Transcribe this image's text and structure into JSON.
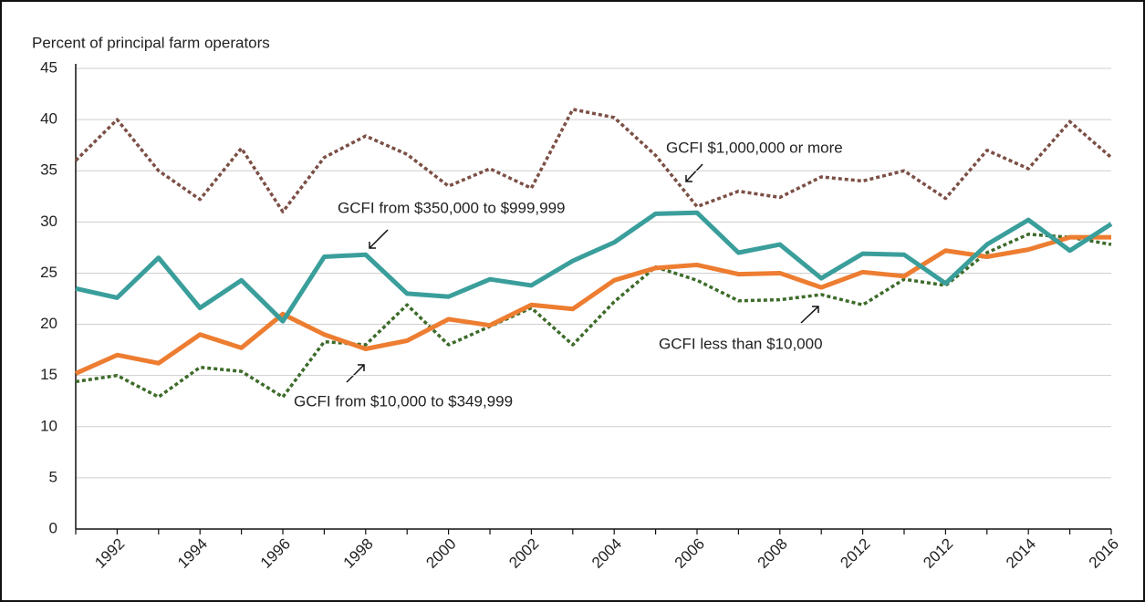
{
  "chart_data": {
    "type": "line",
    "y_axis_label": "Percent of principal farm operators",
    "categories": [
      null,
      "1992",
      null,
      "1994",
      null,
      "1996",
      null,
      "1998",
      null,
      "2000",
      null,
      "2002",
      null,
      "2004",
      null,
      "2006",
      null,
      "2008",
      null,
      "2012",
      null,
      "2012",
      null,
      "2014",
      null,
      "2016"
    ],
    "series": [
      {
        "name": "GCFI $1,000,000 or more",
        "color": "#7b4f45",
        "style": "dotted",
        "values": [
          36,
          40,
          35,
          32.2,
          37.2,
          31,
          36.3,
          38.4,
          36.6,
          33.5,
          35.2,
          33.3,
          41,
          40.2,
          36.5,
          31.5,
          33,
          32.4,
          34.4,
          34,
          35,
          32.3,
          37,
          35.2,
          39.8,
          36.3
        ]
      },
      {
        "name": "GCFI from $350,000 to $999,999",
        "color": "#3a9e9b",
        "style": "solid",
        "values": [
          23.5,
          22.6,
          26.5,
          21.6,
          24.3,
          20.3,
          26.6,
          26.8,
          23,
          22.7,
          24.4,
          23.8,
          26.2,
          28,
          30.8,
          30.9,
          27,
          27.8,
          24.5,
          26.9,
          26.8,
          24,
          27.8,
          30.2,
          27.2,
          29.8
        ]
      },
      {
        "name": "GCFI less than $10,000",
        "color": "#ed7d31",
        "style": "solid",
        "values": [
          15.2,
          17,
          16.2,
          19,
          17.7,
          21,
          19,
          17.6,
          18.4,
          20.5,
          19.9,
          21.9,
          21.5,
          24.3,
          25.5,
          25.8,
          24.9,
          25,
          23.6,
          25.1,
          24.7,
          27.2,
          26.6,
          27.3,
          28.5,
          28.5
        ]
      },
      {
        "name": "GCFI from $10,000 to $349,999",
        "color": "#3d6b2a",
        "style": "dotted",
        "values": [
          14.4,
          15,
          12.9,
          15.8,
          15.4,
          12.9,
          18.3,
          18,
          21.9,
          18,
          19.8,
          21.6,
          18,
          22.2,
          25.6,
          24.3,
          22.3,
          22.4,
          22.9,
          21.9,
          24.4,
          23.8,
          27,
          28.8,
          28.5,
          27.8
        ]
      }
    ],
    "ylim": [
      0,
      45
    ],
    "yticks": [
      0,
      5,
      10,
      15,
      20,
      25,
      30,
      35,
      40,
      45
    ],
    "grid": true
  }
}
